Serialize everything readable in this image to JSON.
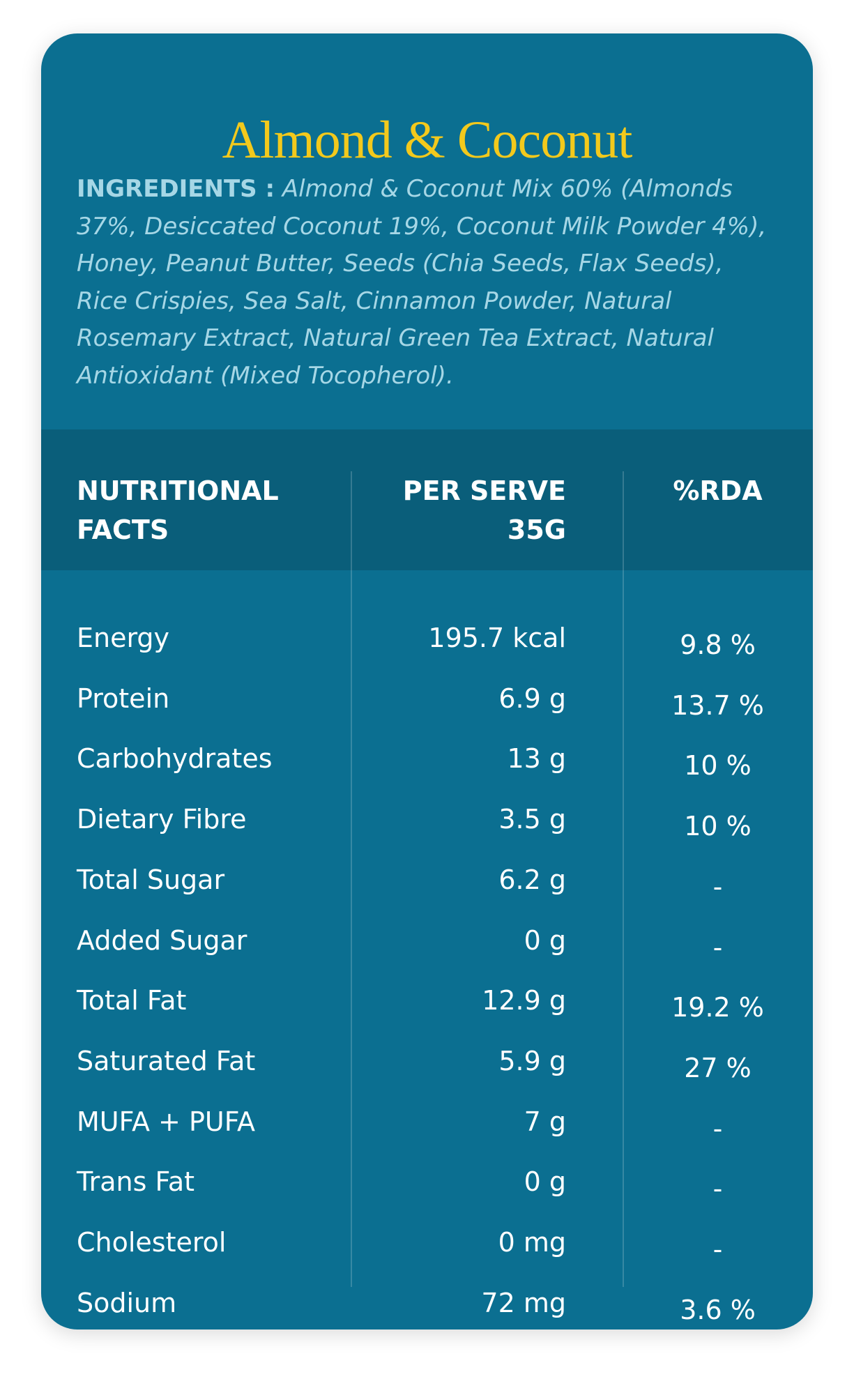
{
  "title": "Almond & Coconut",
  "ingredients": {
    "label": "INGREDIENTS :",
    "text": "Almond & Coconut Mix 60% (Almonds 37%, Desiccated Coconut 19%, Coconut Milk Powder 4%), Honey, Peanut Butter, Seeds (Chia Seeds, Flax Seeds), Rice Crispies, Sea Salt, Cinnamon Powder, Natural Rosemary Extract, Natural Green Tea Extract, Natural Antioxidant (Mixed Tocopherol)."
  },
  "table": {
    "header": [
      [
        "NUTRITIONAL",
        "FACTS"
      ],
      [
        "PER SERVE",
        "35G"
      ],
      [
        "%RDA"
      ]
    ],
    "rows": [
      [
        "Energy",
        "195.7 kcal",
        "9.8 %"
      ],
      [
        "Protein",
        "6.9 g",
        "13.7 %"
      ],
      [
        "Carbohydrates",
        "13 g",
        "10 %"
      ],
      [
        "Dietary Fibre",
        "3.5 g",
        "10 %"
      ],
      [
        "Total Sugar",
        "6.2 g",
        "-"
      ],
      [
        "Added Sugar",
        "0 g",
        "-"
      ],
      [
        "Total Fat",
        "12.9 g",
        "19.2 %"
      ],
      [
        "Saturated Fat",
        "5.9 g",
        "27 %"
      ],
      [
        "MUFA + PUFA",
        "7 g",
        "-"
      ],
      [
        "Trans Fat",
        "0 g",
        "-"
      ],
      [
        "Cholesterol",
        "0 mg",
        "-"
      ],
      [
        "Sodium",
        "72 mg",
        "3.6 %"
      ]
    ]
  }
}
